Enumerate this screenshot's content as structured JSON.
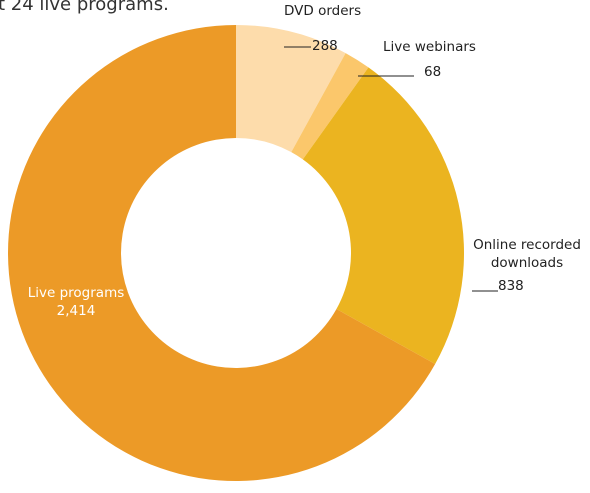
{
  "chart_data": {
    "type": "donut",
    "title": "t 24 live programs.",
    "categories": [
      "DVD orders",
      "Live webinars",
      "Online recorded downloads",
      "Live programs"
    ],
    "values": [
      288,
      68,
      838,
      2414
    ],
    "value_labels": [
      "288",
      "68",
      "838",
      "2,414"
    ],
    "colors": [
      "#fddcab",
      "#fbc76b",
      "#ebb420",
      "#ec9a27"
    ]
  }
}
